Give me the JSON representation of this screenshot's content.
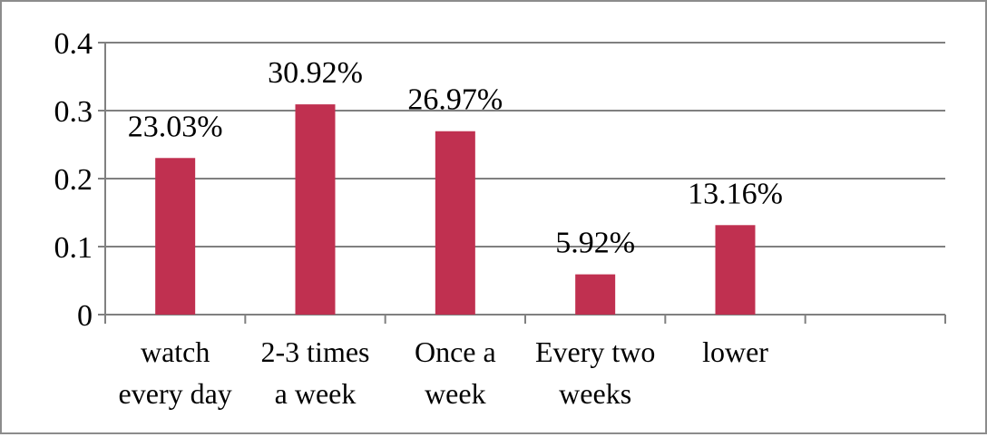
{
  "chart_data": {
    "type": "bar",
    "categories": [
      [
        "watch",
        "every day"
      ],
      [
        "2-3 times",
        "a week"
      ],
      [
        "Once a",
        "week"
      ],
      [
        "Every two",
        "weeks"
      ],
      [
        "lower"
      ]
    ],
    "values": [
      0.2303,
      0.3092,
      0.2697,
      0.0592,
      0.1316
    ],
    "data_labels": [
      "23.03%",
      "30.92%",
      "26.97%",
      "5.92%",
      "13.16%"
    ],
    "y_ticks": [
      "0",
      "0.1",
      "0.2",
      "0.3",
      "0.4"
    ],
    "ylim": [
      0,
      0.4
    ],
    "grid": true,
    "legend": "none",
    "colors": {
      "bar": "#c03050",
      "grid": "#808080",
      "axis": "#808080",
      "frame": "#8c8c8c"
    }
  }
}
